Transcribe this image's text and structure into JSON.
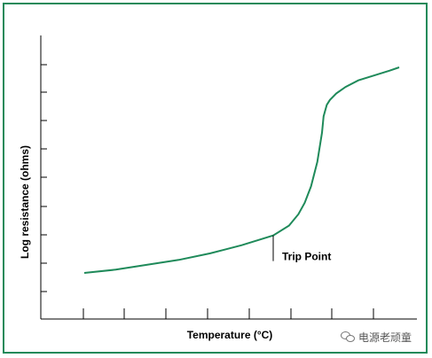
{
  "chart_data": {
    "type": "line",
    "xlabel": "Temperature (°C)",
    "ylabel": "Log resistance (ohms)",
    "annotation": "Trip Point",
    "grid": false,
    "series": [
      {
        "x": [
          0.0,
          0.1,
          0.2,
          0.3,
          0.4,
          0.5,
          0.55,
          0.6,
          0.65,
          0.68,
          0.7,
          0.72,
          0.74,
          0.755,
          0.76,
          0.77,
          0.78,
          0.8,
          0.83,
          0.87,
          0.92,
          0.97,
          1.0
        ],
        "y": [
          0.0,
          0.02,
          0.05,
          0.08,
          0.12,
          0.17,
          0.2,
          0.23,
          0.29,
          0.36,
          0.43,
          0.53,
          0.68,
          0.86,
          0.96,
          1.03,
          1.06,
          1.1,
          1.14,
          1.18,
          1.21,
          1.24,
          1.26
        ],
        "color": "#1f8a5a"
      }
    ],
    "trip_point": {
      "x": 0.6,
      "y": 0.23
    }
  },
  "watermark": {
    "text": "电源老顽童"
  }
}
